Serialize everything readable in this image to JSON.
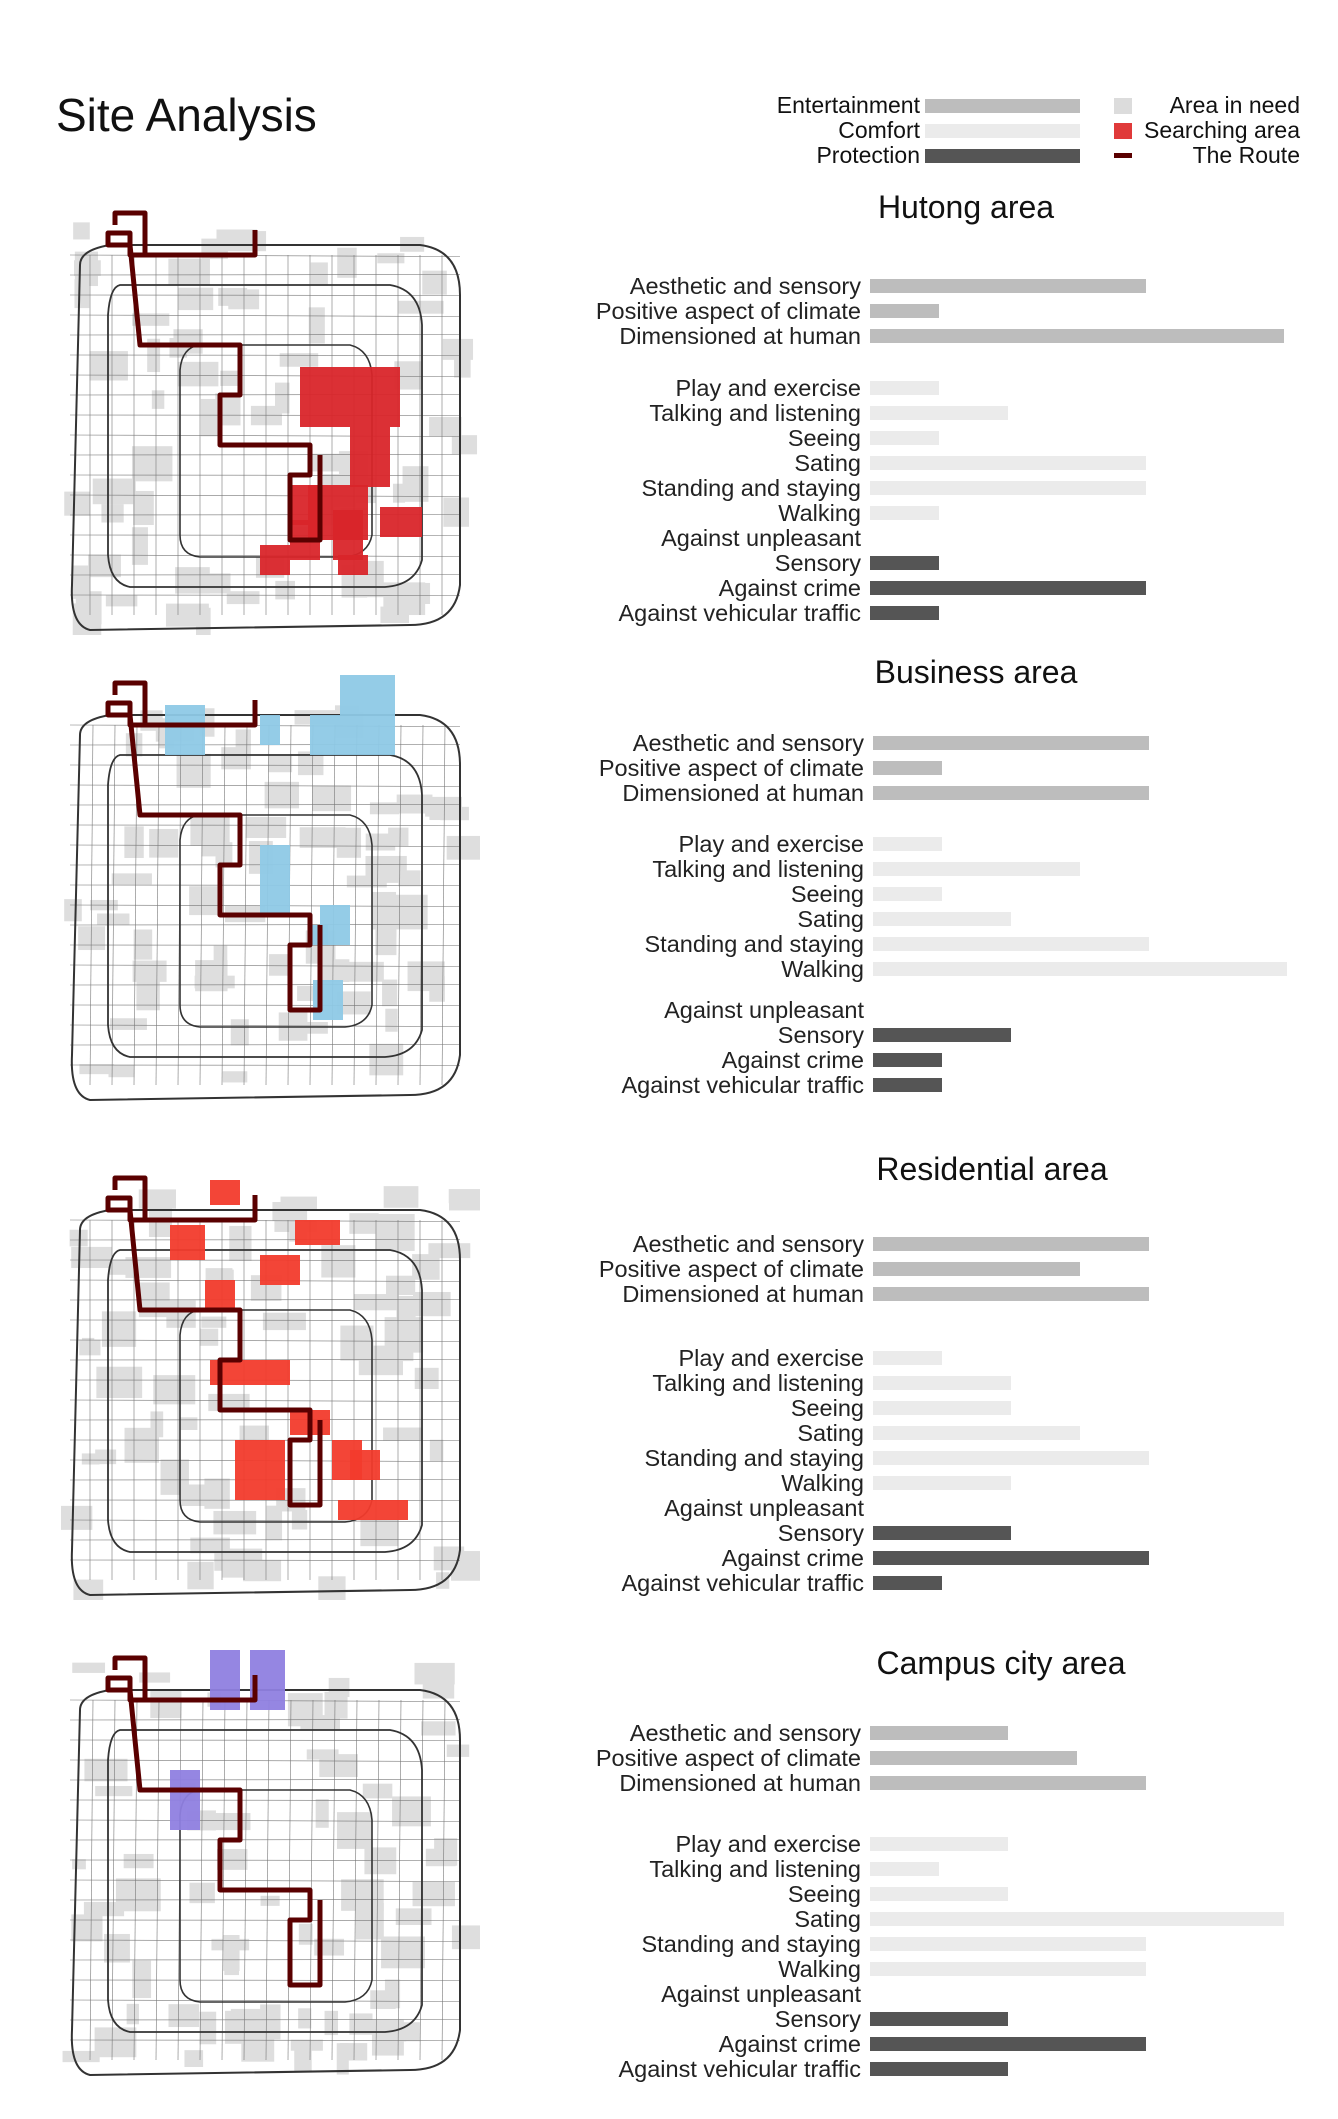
{
  "page_title": "Site Analysis",
  "legend": {
    "categories": [
      {
        "label": "Entertainment",
        "color": "#bdbdbd"
      },
      {
        "label": "Comfort",
        "color": "#ebebeb"
      },
      {
        "label": "Protection",
        "color": "#555555"
      }
    ],
    "map_keys": [
      {
        "label": "Area in need",
        "color": "#dcdcdc"
      },
      {
        "label": "Searching area",
        "color": "#e03a3a"
      },
      {
        "label": "The Route",
        "color": "#5a0000"
      }
    ]
  },
  "maps": [
    {
      "highlight_color": "#d9252a"
    },
    {
      "highlight_color": "#8ec9e6"
    },
    {
      "highlight_color": "#f23b2c"
    },
    {
      "highlight_color": "#8f7fe0"
    }
  ],
  "chart_data": [
    {
      "type": "bar",
      "title": "Hutong area",
      "xlim": [
        0,
        6
      ],
      "categories": [
        "Aesthetic and sensory",
        "Positive aspect of climate",
        "Dimensioned at human",
        "Play and exercise",
        "Talking and listening",
        "Seeing",
        "Sating",
        "Standing and staying",
        "Walking",
        "Against unpleasant",
        "Sensory",
        "Against crime",
        "Against vehicular traffic"
      ],
      "groups": [
        "Entertainment",
        "Entertainment",
        "Entertainment",
        "Comfort",
        "Comfort",
        "Comfort",
        "Comfort",
        "Comfort",
        "Comfort",
        "Protection",
        "Protection",
        "Protection",
        "Protection"
      ],
      "values": [
        4,
        1,
        6,
        1,
        2,
        1,
        4,
        4,
        1,
        0,
        1,
        4,
        1
      ]
    },
    {
      "type": "bar",
      "title": "Business area",
      "xlim": [
        0,
        6
      ],
      "categories": [
        "Aesthetic and sensory",
        "Positive aspect of climate",
        "Dimensioned at human",
        "Play and exercise",
        "Talking and listening",
        "Seeing",
        "Sating",
        "Standing and staying",
        "Walking",
        "Against unpleasant",
        "Sensory",
        "Against crime",
        "Against vehicular traffic"
      ],
      "groups": [
        "Entertainment",
        "Entertainment",
        "Entertainment",
        "Comfort",
        "Comfort",
        "Comfort",
        "Comfort",
        "Comfort",
        "Comfort",
        "Protection",
        "Protection",
        "Protection",
        "Protection"
      ],
      "values": [
        4,
        1,
        4,
        1,
        3,
        1,
        2,
        4,
        6,
        0,
        2,
        1,
        1
      ]
    },
    {
      "type": "bar",
      "title": "Residential area",
      "xlim": [
        0,
        6
      ],
      "categories": [
        "Aesthetic and sensory",
        "Positive aspect of climate",
        "Dimensioned at human",
        "Play and exercise",
        "Talking and listening",
        "Seeing",
        "Sating",
        "Standing and staying",
        "Walking",
        "Against unpleasant",
        "Sensory",
        "Against crime",
        "Against vehicular traffic"
      ],
      "groups": [
        "Entertainment",
        "Entertainment",
        "Entertainment",
        "Comfort",
        "Comfort",
        "Comfort",
        "Comfort",
        "Comfort",
        "Comfort",
        "Protection",
        "Protection",
        "Protection",
        "Protection"
      ],
      "values": [
        4,
        3,
        4,
        1,
        2,
        2,
        3,
        4,
        2,
        0,
        2,
        4,
        1
      ]
    },
    {
      "type": "bar",
      "title": "Campus city area",
      "xlim": [
        0,
        6
      ],
      "categories": [
        "Aesthetic and sensory",
        "Positive aspect of climate",
        "Dimensioned at human",
        "Play and exercise",
        "Talking and listening",
        "Seeing",
        "Sating",
        "Standing and staying",
        "Walking",
        "Against unpleasant",
        "Sensory",
        "Against crime",
        "Against vehicular traffic"
      ],
      "groups": [
        "Entertainment",
        "Entertainment",
        "Entertainment",
        "Comfort",
        "Comfort",
        "Comfort",
        "Comfort",
        "Comfort",
        "Comfort",
        "Protection",
        "Protection",
        "Protection",
        "Protection"
      ],
      "values": [
        2,
        3,
        4,
        2,
        1,
        2,
        6,
        4,
        4,
        0,
        2,
        4,
        2
      ]
    }
  ]
}
